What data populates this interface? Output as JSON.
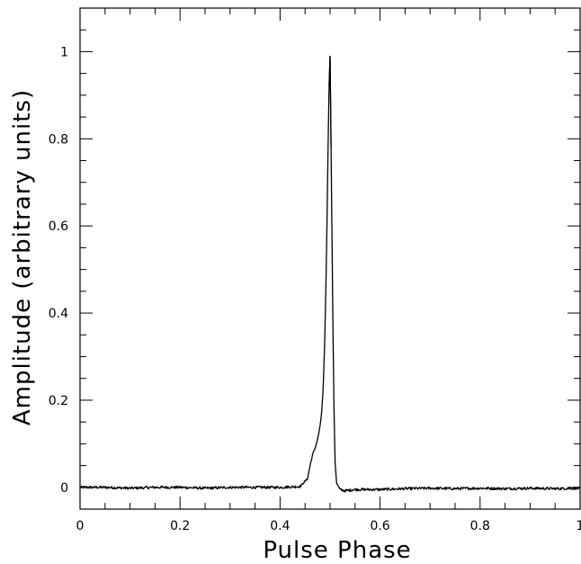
{
  "chart_data": {
    "type": "line",
    "title": "",
    "xlabel": "Pulse Phase",
    "ylabel": "Amplitude   (arbitrary units)",
    "xlim": [
      0,
      1
    ],
    "ylim": [
      -0.05,
      1.1
    ],
    "xticks": [
      0,
      0.2,
      0.4,
      0.6,
      0.8,
      1
    ],
    "xtick_labels": [
      "0",
      "0.2",
      "0.4",
      "0.6",
      "0.8",
      "1"
    ],
    "yticks": [
      0,
      0.2,
      0.4,
      0.6,
      0.8,
      1
    ],
    "ytick_labels": [
      "0",
      "0.2",
      "0.4",
      "0.6",
      "0.8",
      "1"
    ],
    "grid": false,
    "legend": "none",
    "series": [
      {
        "line_color": "#000000",
        "x": [
          0,
          0.05,
          0.1,
          0.15,
          0.2,
          0.25,
          0.3,
          0.35,
          0.4,
          0.44,
          0.455,
          0.46,
          0.465,
          0.47,
          0.475,
          0.48,
          0.483,
          0.486,
          0.489,
          0.492,
          0.494,
          0.496,
          0.498,
          0.5,
          0.502,
          0.504,
          0.506,
          0.508,
          0.51,
          0.513,
          0.52,
          0.53,
          0.55,
          0.6,
          0.65,
          0.7,
          0.75,
          0.8,
          0.85,
          0.9,
          0.95,
          1
        ],
        "y": [
          0.0,
          0.0,
          -0.002,
          0.0,
          0.0,
          -0.002,
          0.0,
          0.0,
          0.0,
          0.002,
          0.02,
          0.05,
          0.075,
          0.09,
          0.11,
          0.14,
          0.17,
          0.22,
          0.32,
          0.48,
          0.62,
          0.78,
          0.92,
          0.99,
          0.78,
          0.56,
          0.34,
          0.17,
          0.06,
          0.01,
          -0.005,
          -0.008,
          -0.005,
          -0.005,
          -0.003,
          -0.002,
          -0.003,
          -0.002,
          -0.003,
          -0.002,
          -0.003,
          -0.002
        ]
      }
    ]
  }
}
